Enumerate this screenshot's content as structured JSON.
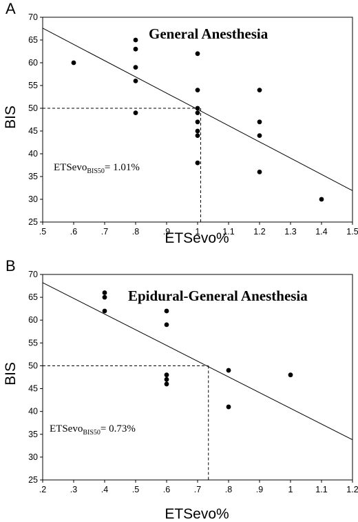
{
  "chart_data": [
    {
      "panel": "A",
      "type": "scatter",
      "title": "General Anesthesia",
      "xlabel": "ETSevo%",
      "ylabel": "BIS",
      "xlim": [
        0.5,
        1.5
      ],
      "ylim": [
        25,
        70
      ],
      "xticks": [
        ".5",
        ".6",
        ".7",
        ".8",
        ".9",
        "1",
        "1.1",
        "1.2",
        "1.3",
        "1.4",
        "1.5"
      ],
      "yticks": [
        "25",
        "30",
        "35",
        "40",
        "45",
        "50",
        "55",
        "60",
        "65",
        "70"
      ],
      "points": [
        {
          "x": 0.6,
          "y": 60
        },
        {
          "x": 0.8,
          "y": 65
        },
        {
          "x": 0.8,
          "y": 63
        },
        {
          "x": 0.8,
          "y": 59
        },
        {
          "x": 0.8,
          "y": 56
        },
        {
          "x": 0.8,
          "y": 49
        },
        {
          "x": 1.0,
          "y": 62
        },
        {
          "x": 1.0,
          "y": 54
        },
        {
          "x": 1.0,
          "y": 50
        },
        {
          "x": 1.0,
          "y": 49
        },
        {
          "x": 1.0,
          "y": 47
        },
        {
          "x": 1.0,
          "y": 45
        },
        {
          "x": 1.0,
          "y": 44
        },
        {
          "x": 1.0,
          "y": 38
        },
        {
          "x": 1.2,
          "y": 54
        },
        {
          "x": 1.2,
          "y": 47
        },
        {
          "x": 1.2,
          "y": 44
        },
        {
          "x": 1.2,
          "y": 36
        },
        {
          "x": 1.4,
          "y": 30
        }
      ],
      "regression_line": {
        "x1": 0.5,
        "y1": 67.6,
        "x2": 1.5,
        "y2": 31.9
      },
      "reference": {
        "x": 1.01,
        "y": 50
      },
      "annotation": {
        "main": "ETSevo",
        "sub": "BIS50",
        "value": "= 1.01%"
      }
    },
    {
      "panel": "B",
      "type": "scatter",
      "title": "Epidural-General Anesthesia",
      "xlabel": "ETSevo%",
      "ylabel": "BIS",
      "xlim": [
        0.2,
        1.2
      ],
      "ylim": [
        25,
        70
      ],
      "xticks": [
        ".2",
        ".3",
        ".4",
        ".5",
        ".6",
        ".7",
        ".8",
        ".9",
        "1",
        "1.1",
        "1.2"
      ],
      "yticks": [
        "25",
        "30",
        "35",
        "40",
        "45",
        "50",
        "55",
        "60",
        "65",
        "70"
      ],
      "points": [
        {
          "x": 0.4,
          "y": 66
        },
        {
          "x": 0.4,
          "y": 65
        },
        {
          "x": 0.4,
          "y": 62
        },
        {
          "x": 0.6,
          "y": 62
        },
        {
          "x": 0.6,
          "y": 59
        },
        {
          "x": 0.6,
          "y": 48
        },
        {
          "x": 0.6,
          "y": 47
        },
        {
          "x": 0.6,
          "y": 46
        },
        {
          "x": 0.8,
          "y": 49
        },
        {
          "x": 0.8,
          "y": 41
        },
        {
          "x": 1.0,
          "y": 48
        }
      ],
      "regression_line": {
        "x1": 0.2,
        "y1": 68.2,
        "x2": 1.2,
        "y2": 33.8
      },
      "reference": {
        "x": 0.735,
        "y": 50
      },
      "annotation": {
        "main": "ETSevo",
        "sub": "BIS50",
        "value": "= 0.73%"
      }
    }
  ]
}
